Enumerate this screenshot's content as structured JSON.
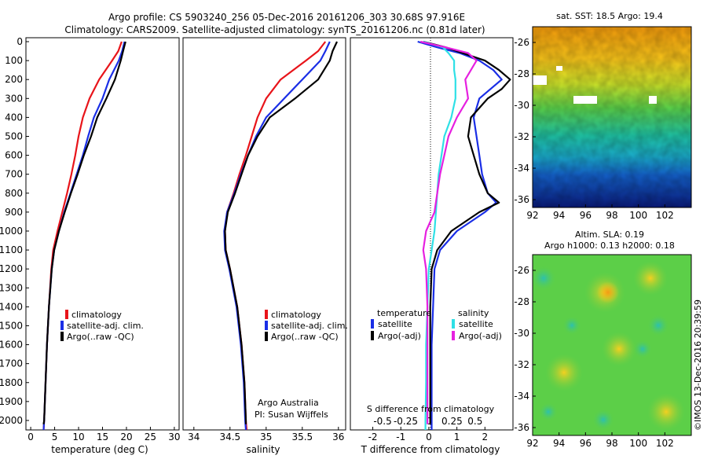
{
  "header": {
    "title_line1": "Argo profile: CS 5903240_256 05-Dec-2016 20161206_303 30.68S 97.916E",
    "title_line2": "Climatology: CARS2009. Satellite-adjusted climatology: synTS_20161206.nc (0.81d later)"
  },
  "colors": {
    "climatology": "#e8141a",
    "satellite": "#1a2ee6",
    "argo": "#000000",
    "sal_satellite": "#2ee0e6",
    "sal_argo": "#e620e0"
  },
  "depth_ticks": [
    "0",
    "100",
    "200",
    "300",
    "400",
    "500",
    "600",
    "700",
    "800",
    "900",
    "1000",
    "1100",
    "1200",
    "1300",
    "1400",
    "1500",
    "1600",
    "1700",
    "1800",
    "1900",
    "2000"
  ],
  "legend_left": {
    "items": [
      "climatology",
      "satellite-adj. clim.",
      "Argo(..raw -QC)"
    ]
  },
  "legend_sal": {
    "items": [
      "climatology",
      "satellite-adj. clim.",
      "Argo(..raw -QC)"
    ]
  },
  "legend_diff": {
    "temp_title": "temperature",
    "temp_items": [
      "satellite",
      "Argo(-adj)"
    ],
    "sal_title": "salinity",
    "sal_items": [
      "satellite",
      "Argo(-adj)"
    ]
  },
  "credit": {
    "line1": "Argo Australia",
    "line2": "PI: Susan Wijffels"
  },
  "side_right": {
    "sst_title": "sat. SST: 18.5 Argo: 19.4",
    "sla_title1": "Altim. SLA: 0.19",
    "sla_title2": "Argo h1000: 0.13 h2000: 0.18",
    "lat_ticks": [
      "-26",
      "-28",
      "-30",
      "-32",
      "-34",
      "-36"
    ],
    "lon_ticks": [
      "92",
      "94",
      "96",
      "98",
      "100",
      "102"
    ],
    "footer": "©IMOS 13-Dec-2016 20:39:59"
  },
  "chart_data": [
    {
      "type": "line",
      "panel": "temperature",
      "xlabel": "temperature (deg C)",
      "xlim": [
        -1,
        31
      ],
      "x_ticks": [
        "0",
        "5",
        "10",
        "15",
        "20",
        "25",
        "30"
      ],
      "ylim": [
        2050,
        0
      ],
      "series": [
        {
          "name": "climatology",
          "depth": [
            0,
            50,
            100,
            200,
            300,
            400,
            500,
            600,
            700,
            800,
            900,
            1000,
            1100,
            1200,
            1400,
            1600,
            1800,
            2000,
            2050
          ],
          "values": [
            19.0,
            18.3,
            17.0,
            14.3,
            12.3,
            10.9,
            10.0,
            9.3,
            8.5,
            7.6,
            6.6,
            5.6,
            4.7,
            4.3,
            3.8,
            3.4,
            3.1,
            2.8,
            2.7
          ]
        },
        {
          "name": "satellite-adj. clim.",
          "depth": [
            0,
            50,
            100,
            200,
            300,
            400,
            500,
            600,
            700,
            800,
            900,
            1000,
            1100,
            1200,
            1400,
            1600,
            1800,
            2000,
            2050
          ],
          "values": [
            19.6,
            19.1,
            18.4,
            16.4,
            15.0,
            13.2,
            12.0,
            10.9,
            9.6,
            8.3,
            7.0,
            5.9,
            4.9,
            4.4,
            3.8,
            3.4,
            3.1,
            2.8,
            2.7
          ]
        },
        {
          "name": "Argo(..raw -QC)",
          "depth": [
            0,
            50,
            100,
            200,
            300,
            400,
            500,
            600,
            700,
            800,
            900,
            1000,
            1100,
            1200,
            1400,
            1600,
            1800,
            2000,
            2020
          ],
          "values": [
            19.8,
            19.3,
            18.8,
            17.6,
            15.8,
            13.9,
            12.6,
            11.1,
            9.8,
            8.4,
            7.1,
            5.9,
            4.9,
            4.4,
            3.8,
            3.4,
            3.1,
            2.8,
            2.7
          ]
        }
      ]
    },
    {
      "type": "line",
      "panel": "salinity",
      "xlabel": "salinity",
      "xlim": [
        33.85,
        36.1
      ],
      "x_ticks": [
        "34",
        "34.5",
        "35",
        "35.5",
        "36"
      ],
      "ylim": [
        2050,
        0
      ],
      "series": [
        {
          "name": "climatology",
          "depth": [
            0,
            50,
            100,
            200,
            300,
            400,
            500,
            600,
            700,
            800,
            900,
            1000,
            1100,
            1200,
            1400,
            1600,
            1800,
            2000,
            2050
          ],
          "values": [
            35.82,
            35.72,
            35.55,
            35.2,
            35.0,
            34.88,
            34.8,
            34.72,
            34.63,
            34.55,
            34.46,
            34.43,
            34.44,
            34.5,
            34.6,
            34.66,
            34.7,
            34.72,
            34.73
          ]
        },
        {
          "name": "satellite-adj. clim.",
          "depth": [
            0,
            50,
            100,
            200,
            300,
            400,
            500,
            600,
            700,
            800,
            900,
            1000,
            1100,
            1200,
            1400,
            1600,
            1800,
            2000,
            2050
          ],
          "values": [
            35.88,
            35.82,
            35.75,
            35.5,
            35.25,
            35.0,
            34.86,
            34.75,
            34.65,
            34.56,
            34.46,
            34.42,
            34.43,
            34.49,
            34.59,
            34.65,
            34.69,
            34.71,
            34.72
          ]
        },
        {
          "name": "Argo(..raw -QC)",
          "depth": [
            0,
            50,
            100,
            200,
            300,
            400,
            500,
            600,
            700,
            800,
            900,
            1000,
            1100,
            1200,
            1400,
            1600,
            1800,
            2000,
            2020
          ],
          "values": [
            35.98,
            35.92,
            35.88,
            35.72,
            35.4,
            35.05,
            34.88,
            34.75,
            34.66,
            34.57,
            34.47,
            34.43,
            34.44,
            34.5,
            34.6,
            34.66,
            34.7,
            34.72,
            34.72
          ]
        }
      ]
    },
    {
      "type": "line",
      "panel": "difference from climatology",
      "xlabel": "T difference from climatology",
      "xlim": [
        -2.8,
        3.0
      ],
      "x_ticks": [
        "-2",
        "-1",
        "0",
        "1",
        "2"
      ],
      "x2label": "S difference from climatology",
      "x2_ticks": [
        "-0.5",
        "-0.25",
        "0",
        "0.25",
        "0.5"
      ],
      "ylim": [
        2050,
        0
      ],
      "series": [
        {
          "name": "temperature satellite",
          "depth": [
            0,
            30,
            60,
            100,
            150,
            200,
            300,
            400,
            500,
            600,
            700,
            800,
            850,
            900,
            1000,
            1100,
            1200,
            1400,
            1600,
            1800,
            2000,
            2050
          ],
          "values": [
            -0.4,
            0.3,
            1.1,
            1.8,
            2.3,
            2.6,
            1.8,
            1.6,
            1.7,
            1.8,
            1.9,
            2.1,
            2.4,
            2.0,
            1.0,
            0.4,
            0.2,
            0.15,
            0.1,
            0.1,
            0.1,
            0.1
          ]
        },
        {
          "name": "temperature Argo(-adj)",
          "depth": [
            0,
            30,
            60,
            100,
            150,
            200,
            250,
            300,
            400,
            500,
            600,
            700,
            800,
            850,
            900,
            1000,
            1100,
            1200,
            1400,
            1600,
            1800,
            2000,
            2020
          ],
          "values": [
            -0.2,
            0.6,
            1.2,
            2.0,
            2.5,
            2.9,
            2.6,
            2.1,
            1.5,
            1.4,
            1.6,
            1.8,
            2.1,
            2.5,
            1.8,
            0.8,
            0.3,
            0.1,
            0.05,
            0.05,
            0.05,
            0.05,
            0.05
          ]
        },
        {
          "name": "salinity satellite",
          "depth": [
            0,
            30,
            60,
            100,
            150,
            200,
            300,
            400,
            500,
            600,
            700,
            800,
            900,
            1000,
            1100,
            1200,
            1400,
            1600,
            1800,
            2000,
            2050
          ],
          "values": [
            -0.2,
            0.5,
            0.7,
            0.9,
            0.9,
            0.95,
            0.95,
            0.8,
            0.55,
            0.45,
            0.35,
            0.3,
            0.25,
            0.2,
            0.1,
            0.0,
            -0.05,
            -0.1,
            -0.1,
            -0.12,
            -0.12
          ]
        },
        {
          "name": "salinity Argo(-adj)",
          "depth": [
            0,
            30,
            60,
            100,
            150,
            200,
            300,
            400,
            500,
            600,
            700,
            800,
            900,
            1000,
            1100,
            1200,
            1400,
            1600,
            1800,
            2000,
            2020
          ],
          "values": [
            -0.3,
            0.6,
            1.4,
            1.7,
            1.5,
            1.3,
            1.4,
            1.0,
            0.7,
            0.55,
            0.4,
            0.3,
            0.2,
            -0.1,
            -0.2,
            -0.1,
            -0.05,
            -0.05,
            -0.05,
            -0.05,
            -0.05
          ]
        }
      ]
    },
    {
      "type": "heatmap",
      "panel": "sat. SST",
      "xlim": [
        92,
        104
      ],
      "ylim": [
        -36.5,
        -25
      ]
    },
    {
      "type": "heatmap",
      "panel": "Altim. SLA",
      "xlim": [
        92,
        104
      ],
      "ylim": [
        -36.5,
        -25
      ]
    }
  ]
}
